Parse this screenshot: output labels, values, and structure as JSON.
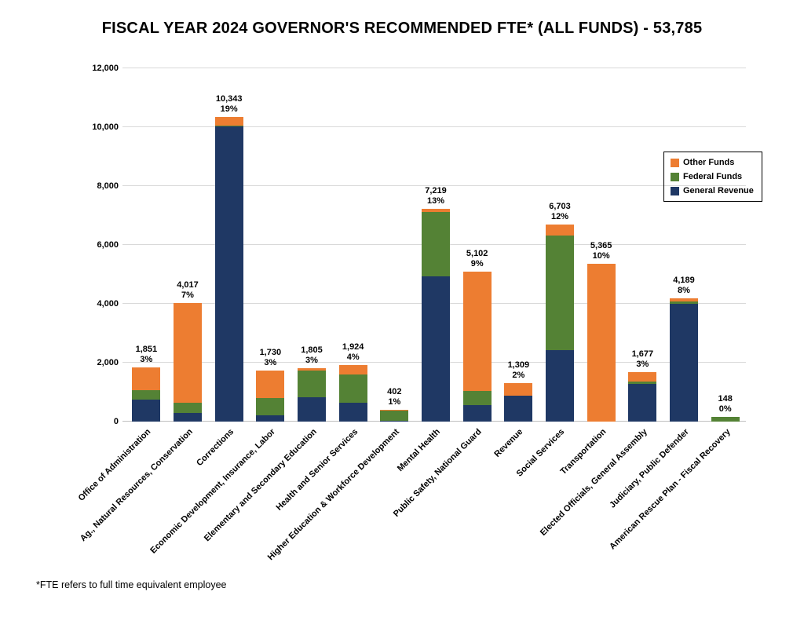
{
  "page": {
    "title": "FISCAL YEAR 2024 GOVERNOR'S RECOMMENDED FTE* (ALL FUNDS) - 53,785",
    "footnote": "*FTE refers to full time equivalent employee"
  },
  "colors": {
    "other_funds": "#ED7D31",
    "federal_funds": "#548235",
    "general_revenue": "#1F3864",
    "gridline": "#D9D9D9",
    "axis_line": "#BFBFBF",
    "legend_border": "#000000",
    "text": "#000000",
    "background": "#FFFFFF"
  },
  "legend": {
    "items": [
      {
        "label": "Other Funds",
        "key": "other_funds"
      },
      {
        "label": "Federal Funds",
        "key": "federal_funds"
      },
      {
        "label": "General Revenue",
        "key": "general_revenue"
      }
    ]
  },
  "chart_data": {
    "type": "bar",
    "stacked": true,
    "title": "FISCAL YEAR 2024 GOVERNOR'S RECOMMENDED FTE* (ALL FUNDS) - 53,785",
    "xlabel": "",
    "ylabel": "",
    "ylim": [
      0,
      12000
    ],
    "grid": "horizontal",
    "legend_position": "inside-right",
    "total_fte_label": "53,785",
    "yticks": [
      {
        "v": 0,
        "label": "0"
      },
      {
        "v": 2000,
        "label": "2,000"
      },
      {
        "v": 4000,
        "label": "4,000"
      },
      {
        "v": 6000,
        "label": "6,000"
      },
      {
        "v": 8000,
        "label": "8,000"
      },
      {
        "v": 10000,
        "label": "10,000"
      },
      {
        "v": 12000,
        "label": "12,000"
      }
    ],
    "categories": [
      "Office of Administration",
      "Ag., Natural Resources, Conservation",
      "Corrections",
      "Economic Development, Insurance, Labor",
      "Elementary and Secondary Education",
      "Health and Senior Services",
      "Higher Education & Workforce Development",
      "Mental Health",
      "Public Safety, National Guard",
      "Revenue",
      "Social Services",
      "Transportation",
      "Elected Officials, General Assembly",
      "Judiciary, Public Defender",
      "American Rescue Plan - Fiscal Recovery"
    ],
    "stack_order_bottom_to_top": [
      "General Revenue",
      "Federal Funds",
      "Other Funds"
    ],
    "series": [
      {
        "name": "General Revenue",
        "color_key": "general_revenue",
        "values": [
          747,
          290,
          10023,
          213,
          840,
          650,
          40,
          4940,
          560,
          880,
          2440,
          0,
          1280,
          3990,
          0
        ]
      },
      {
        "name": "Federal Funds",
        "color_key": "federal_funds",
        "values": [
          320,
          350,
          30,
          587,
          890,
          960,
          330,
          2180,
          480,
          0,
          3890,
          0,
          80,
          90,
          148
        ]
      },
      {
        "name": "Other Funds",
        "color_key": "other_funds",
        "values": [
          784,
          3377,
          290,
          930,
          75,
          314,
          32,
          99,
          4062,
          429,
          373,
          5365,
          317,
          109,
          0
        ]
      }
    ],
    "totals": [
      1851,
      4017,
      10343,
      1730,
      1805,
      1924,
      402,
      7219,
      5102,
      1309,
      6703,
      5365,
      1677,
      4189,
      148
    ],
    "total_labels": [
      "1,851",
      "4,017",
      "10,343",
      "1,730",
      "1,805",
      "1,924",
      "402",
      "7,219",
      "5,102",
      "1,309",
      "6,703",
      "5,365",
      "1,677",
      "4,189",
      "148"
    ],
    "pct_labels": [
      "3%",
      "7%",
      "19%",
      "3%",
      "3%",
      "4%",
      "1%",
      "13%",
      "9%",
      "2%",
      "12%",
      "10%",
      "3%",
      "8%",
      "0%"
    ]
  }
}
